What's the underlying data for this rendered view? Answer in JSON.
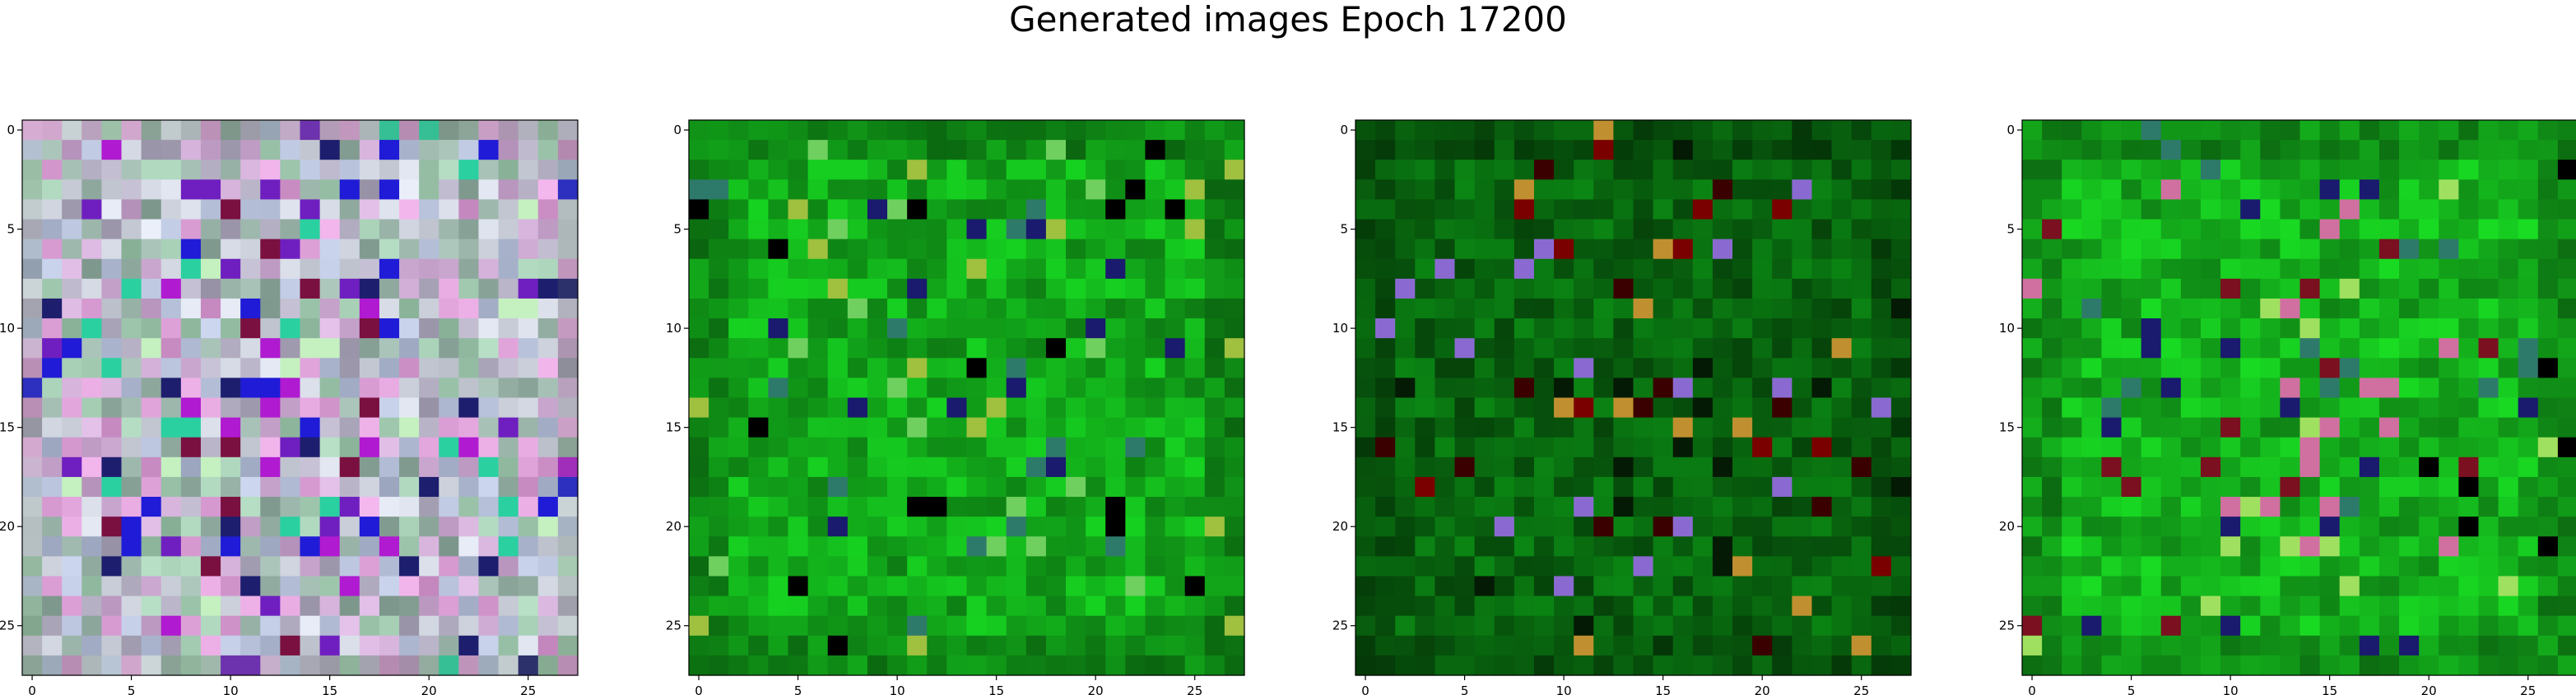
{
  "suptitle": "Generated images Epoch 17200",
  "chart_data": {
    "type": "heatmap",
    "grid_size": 28,
    "xticks": [
      0,
      5,
      10,
      15,
      20,
      25
    ],
    "yticks": [
      0,
      5,
      10,
      15,
      20,
      25
    ],
    "xlim": [
      -0.5,
      27.5
    ],
    "ylim": [
      27.5,
      -0.5
    ],
    "panels": [
      {
        "id": "image-1",
        "palette": "pastel",
        "base_color": "#c9b7cf",
        "accent_colors": [
          "#1f1bd6",
          "#6f1fbf",
          "#b01ad0",
          "#2bd0a0",
          "#1e1e6e",
          "#7a1040",
          "#c5f0c0"
        ]
      },
      {
        "id": "image-2",
        "palette": "green",
        "base_color": "#12a81a",
        "accent_colors": [
          "#000000",
          "#1a1a6e",
          "#6fd060",
          "#2e7a6a",
          "#a0c040"
        ]
      },
      {
        "id": "image-3",
        "palette": "dark-green",
        "base_color": "#0a7a12",
        "accent_colors": [
          "#3a0000",
          "#7a0000",
          "#8a6ad0",
          "#c09030",
          "#041a04"
        ]
      },
      {
        "id": "image-4",
        "palette": "green",
        "base_color": "#14b01c",
        "accent_colors": [
          "#000000",
          "#1a1a6e",
          "#7a1020",
          "#d070a0",
          "#2e7a6a",
          "#a0e060"
        ]
      }
    ]
  }
}
